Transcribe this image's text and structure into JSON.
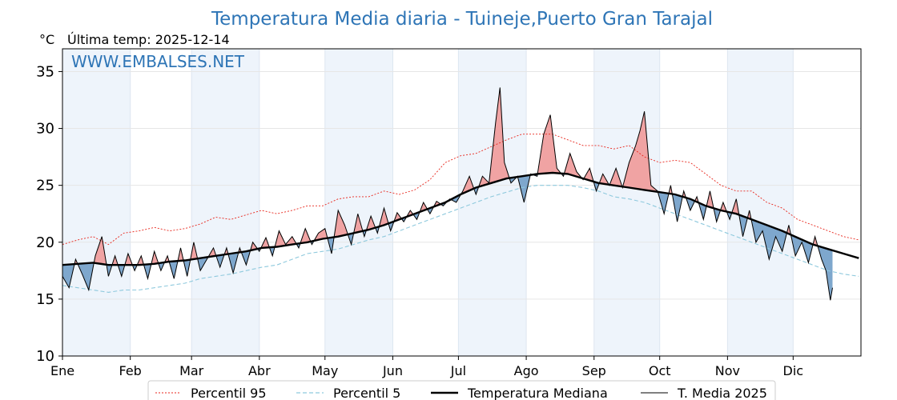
{
  "header": {
    "title": "Temperatura Media diaria - Tuineje,Puerto Gran Tarajal",
    "unit": "°C",
    "last_temp": "Última temp: 2025-12-14",
    "watermark": "WWW.EMBALSES.NET"
  },
  "colors": {
    "title": "#2e75b6",
    "p95": "#e8261c",
    "p5": "#8ec9dd",
    "median": "#000000",
    "series2025": "#000000",
    "above_fill": "#f0a3a3",
    "below_fill": "#7ea7cd",
    "month_band": "#eef4fb"
  },
  "chart_data": {
    "type": "line",
    "ylim": [
      10,
      37
    ],
    "y_ticks": [
      10,
      15,
      20,
      25,
      30,
      35
    ],
    "x_domain_days": 365,
    "months": [
      {
        "label": "Ene",
        "start": 1
      },
      {
        "label": "Feb",
        "start": 32
      },
      {
        "label": "Mar",
        "start": 60
      },
      {
        "label": "Abr",
        "start": 91
      },
      {
        "label": "May",
        "start": 121
      },
      {
        "label": "Jun",
        "start": 152
      },
      {
        "label": "Jul",
        "start": 182
      },
      {
        "label": "Ago",
        "start": 213
      },
      {
        "label": "Sep",
        "start": 244
      },
      {
        "label": "Oct",
        "start": 274
      },
      {
        "label": "Nov",
        "start": 305
      },
      {
        "label": "Dic",
        "start": 335
      }
    ],
    "grid": true,
    "legend_position": "bottom",
    "series": [
      {
        "name": "Percentil 95",
        "style": "dotted-red",
        "points": [
          [
            1,
            19.8
          ],
          [
            8,
            20.2
          ],
          [
            15,
            20.5
          ],
          [
            22,
            19.8
          ],
          [
            29,
            20.8
          ],
          [
            36,
            21.0
          ],
          [
            43,
            21.3
          ],
          [
            50,
            21.0
          ],
          [
            57,
            21.2
          ],
          [
            64,
            21.6
          ],
          [
            71,
            22.2
          ],
          [
            78,
            22.0
          ],
          [
            85,
            22.4
          ],
          [
            92,
            22.8
          ],
          [
            99,
            22.5
          ],
          [
            106,
            22.8
          ],
          [
            113,
            23.2
          ],
          [
            120,
            23.2
          ],
          [
            127,
            23.8
          ],
          [
            134,
            24.0
          ],
          [
            141,
            24.0
          ],
          [
            148,
            24.5
          ],
          [
            155,
            24.2
          ],
          [
            162,
            24.6
          ],
          [
            169,
            25.5
          ],
          [
            176,
            27.0
          ],
          [
            183,
            27.6
          ],
          [
            190,
            27.8
          ],
          [
            197,
            28.4
          ],
          [
            204,
            29.0
          ],
          [
            211,
            29.5
          ],
          [
            218,
            29.5
          ],
          [
            225,
            29.5
          ],
          [
            232,
            29.0
          ],
          [
            239,
            28.5
          ],
          [
            246,
            28.5
          ],
          [
            253,
            28.2
          ],
          [
            260,
            28.5
          ],
          [
            267,
            27.5
          ],
          [
            274,
            27.0
          ],
          [
            281,
            27.2
          ],
          [
            288,
            27.0
          ],
          [
            295,
            26.0
          ],
          [
            302,
            25.0
          ],
          [
            309,
            24.5
          ],
          [
            316,
            24.5
          ],
          [
            323,
            23.5
          ],
          [
            330,
            23.0
          ],
          [
            337,
            22.0
          ],
          [
            344,
            21.5
          ],
          [
            351,
            21.0
          ],
          [
            358,
            20.5
          ],
          [
            365,
            20.2
          ]
        ]
      },
      {
        "name": "Percentil 5",
        "style": "dashed-lightblue",
        "points": [
          [
            1,
            16.2
          ],
          [
            8,
            16.0
          ],
          [
            15,
            15.8
          ],
          [
            22,
            15.6
          ],
          [
            29,
            15.8
          ],
          [
            36,
            15.8
          ],
          [
            43,
            16.0
          ],
          [
            50,
            16.2
          ],
          [
            57,
            16.4
          ],
          [
            64,
            16.8
          ],
          [
            71,
            17.0
          ],
          [
            78,
            17.2
          ],
          [
            85,
            17.5
          ],
          [
            92,
            17.8
          ],
          [
            99,
            18.0
          ],
          [
            106,
            18.5
          ],
          [
            113,
            19.0
          ],
          [
            120,
            19.2
          ],
          [
            127,
            19.4
          ],
          [
            134,
            19.8
          ],
          [
            141,
            20.2
          ],
          [
            148,
            20.5
          ],
          [
            155,
            21.0
          ],
          [
            162,
            21.5
          ],
          [
            169,
            22.0
          ],
          [
            176,
            22.5
          ],
          [
            183,
            23.0
          ],
          [
            190,
            23.5
          ],
          [
            197,
            24.0
          ],
          [
            204,
            24.4
          ],
          [
            211,
            24.8
          ],
          [
            218,
            25.0
          ],
          [
            225,
            25.0
          ],
          [
            232,
            25.0
          ],
          [
            239,
            24.8
          ],
          [
            246,
            24.5
          ],
          [
            253,
            24.0
          ],
          [
            260,
            23.8
          ],
          [
            267,
            23.5
          ],
          [
            274,
            23.0
          ],
          [
            281,
            22.5
          ],
          [
            288,
            22.0
          ],
          [
            295,
            21.5
          ],
          [
            302,
            21.0
          ],
          [
            309,
            20.5
          ],
          [
            316,
            20.0
          ],
          [
            323,
            19.5
          ],
          [
            330,
            19.0
          ],
          [
            337,
            18.5
          ],
          [
            344,
            18.0
          ],
          [
            351,
            17.5
          ],
          [
            358,
            17.2
          ],
          [
            365,
            17.0
          ]
        ]
      },
      {
        "name": "Temperatura Mediana",
        "style": "thick-black",
        "points": [
          [
            1,
            18.0
          ],
          [
            8,
            18.1
          ],
          [
            15,
            18.2
          ],
          [
            22,
            18.0
          ],
          [
            29,
            18.0
          ],
          [
            36,
            18.0
          ],
          [
            43,
            18.1
          ],
          [
            50,
            18.3
          ],
          [
            57,
            18.4
          ],
          [
            64,
            18.6
          ],
          [
            71,
            18.8
          ],
          [
            78,
            19.0
          ],
          [
            85,
            19.2
          ],
          [
            92,
            19.5
          ],
          [
            99,
            19.6
          ],
          [
            106,
            19.8
          ],
          [
            113,
            20.0
          ],
          [
            120,
            20.3
          ],
          [
            127,
            20.5
          ],
          [
            134,
            20.8
          ],
          [
            141,
            21.1
          ],
          [
            148,
            21.5
          ],
          [
            155,
            22.0
          ],
          [
            162,
            22.5
          ],
          [
            169,
            23.0
          ],
          [
            176,
            23.5
          ],
          [
            183,
            24.2
          ],
          [
            190,
            24.8
          ],
          [
            197,
            25.2
          ],
          [
            204,
            25.6
          ],
          [
            211,
            25.8
          ],
          [
            218,
            26.0
          ],
          [
            225,
            26.1
          ],
          [
            232,
            26.0
          ],
          [
            239,
            25.6
          ],
          [
            246,
            25.2
          ],
          [
            253,
            25.0
          ],
          [
            260,
            24.8
          ],
          [
            267,
            24.6
          ],
          [
            274,
            24.4
          ],
          [
            281,
            24.2
          ],
          [
            288,
            23.8
          ],
          [
            295,
            23.2
          ],
          [
            302,
            22.8
          ],
          [
            309,
            22.5
          ],
          [
            316,
            22.0
          ],
          [
            323,
            21.5
          ],
          [
            330,
            21.0
          ],
          [
            337,
            20.4
          ],
          [
            344,
            19.8
          ],
          [
            351,
            19.4
          ],
          [
            358,
            19.0
          ],
          [
            365,
            18.6
          ]
        ]
      },
      {
        "name": "T. Media 2025",
        "style": "thin-black",
        "points": [
          [
            1,
            17.0
          ],
          [
            4,
            16.0
          ],
          [
            7,
            18.5
          ],
          [
            10,
            17.2
          ],
          [
            13,
            15.8
          ],
          [
            16,
            18.8
          ],
          [
            19,
            20.5
          ],
          [
            22,
            17.0
          ],
          [
            25,
            18.8
          ],
          [
            28,
            17.0
          ],
          [
            31,
            19.0
          ],
          [
            34,
            17.5
          ],
          [
            37,
            18.8
          ],
          [
            40,
            16.8
          ],
          [
            43,
            19.2
          ],
          [
            46,
            17.5
          ],
          [
            49,
            18.8
          ],
          [
            52,
            16.8
          ],
          [
            55,
            19.5
          ],
          [
            58,
            17.0
          ],
          [
            61,
            20.0
          ],
          [
            64,
            17.5
          ],
          [
            67,
            18.5
          ],
          [
            70,
            19.5
          ],
          [
            73,
            17.8
          ],
          [
            76,
            19.5
          ],
          [
            79,
            17.3
          ],
          [
            82,
            19.5
          ],
          [
            85,
            18.0
          ],
          [
            88,
            20.0
          ],
          [
            91,
            19.2
          ],
          [
            94,
            20.4
          ],
          [
            97,
            18.8
          ],
          [
            100,
            21.0
          ],
          [
            103,
            19.8
          ],
          [
            106,
            20.5
          ],
          [
            109,
            19.5
          ],
          [
            112,
            21.2
          ],
          [
            115,
            19.8
          ],
          [
            118,
            20.8
          ],
          [
            121,
            21.2
          ],
          [
            124,
            19.0
          ],
          [
            127,
            22.8
          ],
          [
            130,
            21.5
          ],
          [
            133,
            19.8
          ],
          [
            136,
            22.5
          ],
          [
            139,
            20.5
          ],
          [
            142,
            22.3
          ],
          [
            145,
            20.8
          ],
          [
            148,
            23.0
          ],
          [
            151,
            21.0
          ],
          [
            154,
            22.6
          ],
          [
            157,
            21.8
          ],
          [
            160,
            22.8
          ],
          [
            163,
            22.0
          ],
          [
            166,
            23.5
          ],
          [
            169,
            22.5
          ],
          [
            172,
            23.6
          ],
          [
            175,
            23.2
          ],
          [
            178,
            23.8
          ],
          [
            181,
            23.5
          ],
          [
            184,
            24.5
          ],
          [
            187,
            25.8
          ],
          [
            190,
            24.2
          ],
          [
            193,
            25.8
          ],
          [
            196,
            25.2
          ],
          [
            199,
            30.5
          ],
          [
            201,
            33.6
          ],
          [
            203,
            27.0
          ],
          [
            206,
            25.2
          ],
          [
            209,
            25.8
          ],
          [
            212,
            23.5
          ],
          [
            215,
            26.0
          ],
          [
            218,
            25.8
          ],
          [
            221,
            29.5
          ],
          [
            224,
            31.2
          ],
          [
            227,
            26.5
          ],
          [
            230,
            25.8
          ],
          [
            233,
            27.8
          ],
          [
            236,
            26.2
          ],
          [
            239,
            25.5
          ],
          [
            242,
            26.5
          ],
          [
            245,
            24.5
          ],
          [
            248,
            26.0
          ],
          [
            251,
            25.0
          ],
          [
            254,
            26.5
          ],
          [
            257,
            24.8
          ],
          [
            260,
            27.0
          ],
          [
            263,
            28.5
          ],
          [
            265,
            29.8
          ],
          [
            267,
            31.5
          ],
          [
            270,
            25.0
          ],
          [
            273,
            24.5
          ],
          [
            276,
            22.5
          ],
          [
            279,
            25.0
          ],
          [
            282,
            21.8
          ],
          [
            285,
            24.5
          ],
          [
            288,
            22.8
          ],
          [
            291,
            24.0
          ],
          [
            294,
            22.0
          ],
          [
            297,
            24.5
          ],
          [
            300,
            21.8
          ],
          [
            303,
            23.5
          ],
          [
            306,
            22.0
          ],
          [
            309,
            23.8
          ],
          [
            312,
            20.5
          ],
          [
            315,
            22.8
          ],
          [
            318,
            20.0
          ],
          [
            321,
            21.0
          ],
          [
            324,
            18.5
          ],
          [
            327,
            20.5
          ],
          [
            330,
            19.2
          ],
          [
            333,
            21.5
          ],
          [
            336,
            18.8
          ],
          [
            339,
            20.0
          ],
          [
            342,
            18.2
          ],
          [
            345,
            20.5
          ],
          [
            348,
            18.5
          ],
          [
            350,
            17.5
          ],
          [
            352,
            14.9
          ],
          [
            353,
            16.0
          ]
        ]
      }
    ],
    "legend": [
      {
        "label": "Percentil 95",
        "style": "dotted-red"
      },
      {
        "label": "Percentil 5",
        "style": "dashed-lightblue"
      },
      {
        "label": "Temperatura Mediana",
        "style": "thick-black"
      },
      {
        "label": "T. Media 2025",
        "style": "thin-black"
      }
    ]
  }
}
